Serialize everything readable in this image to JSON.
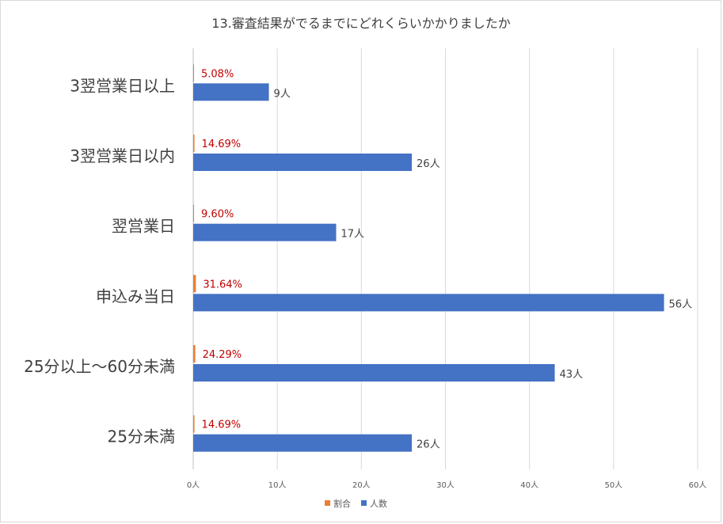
{
  "chart_data": {
    "type": "bar",
    "orientation": "horizontal",
    "title": "13.審査結果がでるまでにどれくらいかかりましたか",
    "categories": [
      "3翌営業日以上",
      "3翌営業日以内",
      "翌営業日",
      "申込み当日",
      "25分以上～60分未満",
      "25分未満"
    ],
    "series": [
      {
        "name": "割合",
        "color": "#ed7d31",
        "label_color": "#c00000",
        "values": [
          0.0508,
          0.1469,
          0.096,
          0.3164,
          0.2429,
          0.1469
        ],
        "labels": [
          "5.08%",
          "14.69%",
          "9.60%",
          "31.64%",
          "24.29%",
          "14.69%"
        ]
      },
      {
        "name": "人数",
        "color": "#4472c4",
        "label_color": "#404040",
        "values": [
          9,
          26,
          17,
          56,
          43,
          26
        ],
        "labels": [
          "9人",
          "26人",
          "17人",
          "56人",
          "43人",
          "26人"
        ]
      }
    ],
    "xlim": [
      0,
      60
    ],
    "x_ticks": [
      {
        "value": 0,
        "label": "0人"
      },
      {
        "value": 10,
        "label": "10人"
      },
      {
        "value": 20,
        "label": "20人"
      },
      {
        "value": 30,
        "label": "30人"
      },
      {
        "value": 40,
        "label": "40人"
      },
      {
        "value": 50,
        "label": "50人"
      },
      {
        "value": 60,
        "label": "60人"
      }
    ],
    "grid": true,
    "legend_position": "bottom",
    "xlabel": "",
    "ylabel": ""
  }
}
